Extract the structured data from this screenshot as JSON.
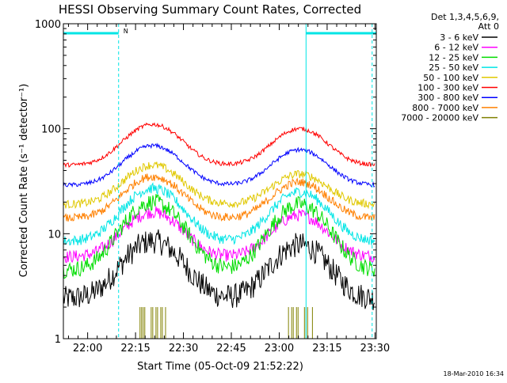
{
  "chart_data": {
    "type": "line",
    "title": "HESSI Observing Summary Count Rates, Corrected",
    "xlabel": "Start Time (05-Oct-09 21:52:22)",
    "ylabel": "Corrected Count Rate (s⁻¹ detector⁻¹)",
    "y_scale": "log",
    "ylim": [
      1,
      1000
    ],
    "xlim_minutes": [
      0,
      98
    ],
    "x_ticks": [
      {
        "label": "22:00",
        "minute": 7.6
      },
      {
        "label": "22:15",
        "minute": 22.6
      },
      {
        "label": "22:30",
        "minute": 37.6
      },
      {
        "label": "22:45",
        "minute": 52.6
      },
      {
        "label": "23:00",
        "minute": 67.6
      },
      {
        "label": "23:15",
        "minute": 82.6
      },
      {
        "label": "23:30",
        "minute": 97.6
      }
    ],
    "y_ticks": [
      {
        "label": "1",
        "value": 1
      },
      {
        "label": "10",
        "value": 10
      },
      {
        "label": "100",
        "value": 100
      },
      {
        "label": "1000",
        "value": 1000
      }
    ],
    "legend_header": [
      "Det 1,3,4,5,6,9,",
      "Att 0"
    ],
    "legend_position": "right",
    "annotations": {
      "N_label": "N",
      "night_bars": [
        [
          0,
          17.3
        ],
        [
          76,
          98
        ]
      ],
      "cyan_verticals": [
        17.3,
        76,
        96.7
      ]
    },
    "series": [
      {
        "name": "3 - 6 keV",
        "color": "#000000",
        "base": 2.4,
        "peak1": 8.5,
        "peak2": 7.8,
        "noise": 0.12
      },
      {
        "name": "6 - 12 keV",
        "color": "#ff00ff",
        "base": 6.0,
        "peak1": 16.0,
        "peak2": 15.0,
        "noise": 0.06
      },
      {
        "name": "12 - 25 keV",
        "color": "#00dd00",
        "base": 4.5,
        "peak1": 20.0,
        "peak2": 19.0,
        "noise": 0.08
      },
      {
        "name": "25 - 50 keV",
        "color": "#00e5e5",
        "base": 8.5,
        "peak1": 27.0,
        "peak2": 25.0,
        "noise": 0.05
      },
      {
        "name": "50 - 100 keV",
        "color": "#e0c800",
        "base": 19.0,
        "peak1": 45.0,
        "peak2": 37.0,
        "noise": 0.04
      },
      {
        "name": "100 - 300 keV",
        "color": "#ff0000",
        "base": 45.0,
        "peak1": 110.0,
        "peak2": 100.0,
        "noise": 0.02
      },
      {
        "name": "300 - 800 keV",
        "color": "#0000ff",
        "base": 29.0,
        "peak1": 69.0,
        "peak2": 63.0,
        "noise": 0.02
      },
      {
        "name": "800 - 7000 keV",
        "color": "#ff8000",
        "base": 14.0,
        "peak1": 35.0,
        "peak2": 31.0,
        "noise": 0.04
      },
      {
        "name": "7000 - 20000 keV",
        "color": "#808000",
        "base": 0,
        "peak1": 2.0,
        "peak2": 2.0,
        "noise": 0.0
      }
    ],
    "peaks_minutes": [
      28,
      74
    ]
  },
  "footer_stamp": "18-Mar-2010 16:34"
}
